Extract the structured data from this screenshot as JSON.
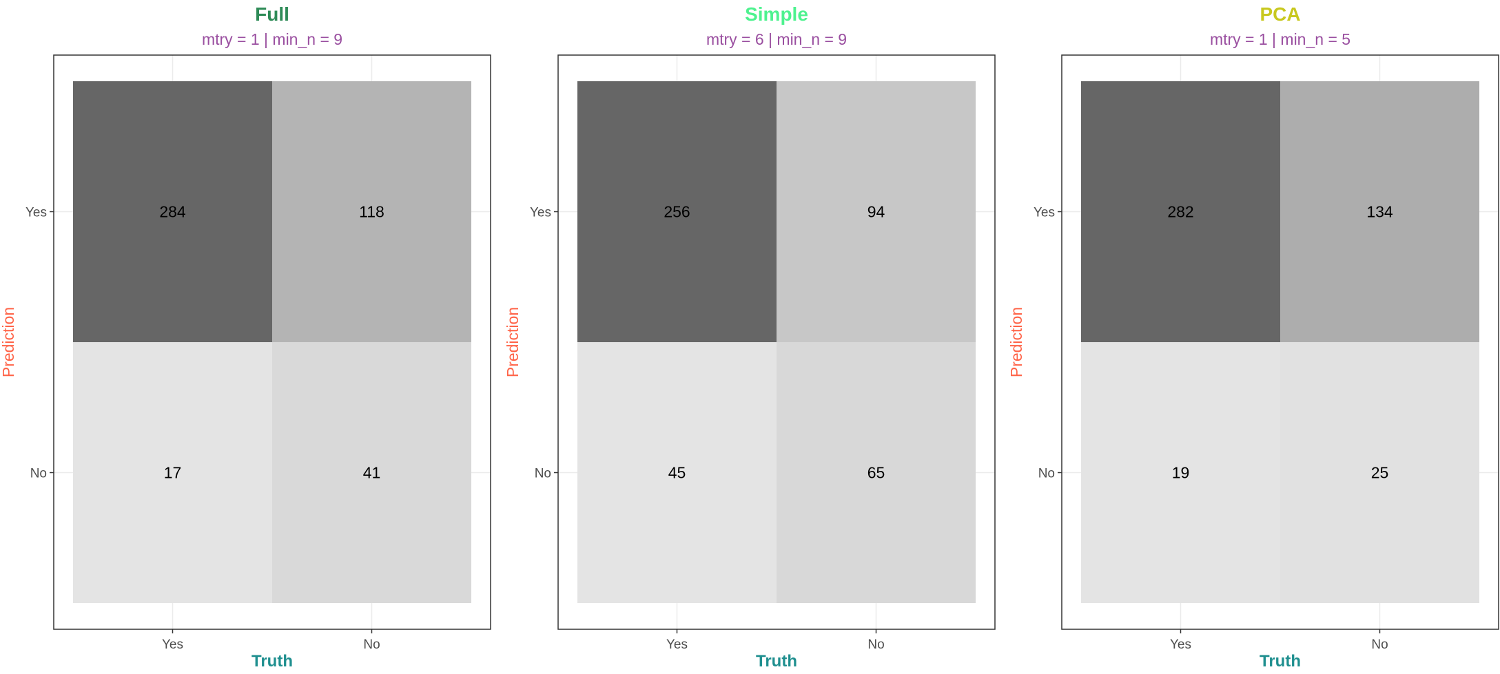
{
  "chart_data": [
    {
      "type": "heatmap",
      "title": "Full",
      "subtitle": "mtry = 1 | min_n = 9",
      "xlabel": "Truth",
      "ylabel": "Prediction",
      "x_categories": [
        "Yes",
        "No"
      ],
      "y_categories": [
        "Yes",
        "No"
      ],
      "cells": [
        {
          "truth": "Yes",
          "prediction": "Yes",
          "value": 284
        },
        {
          "truth": "No",
          "prediction": "Yes",
          "value": 118
        },
        {
          "truth": "Yes",
          "prediction": "No",
          "value": 17
        },
        {
          "truth": "No",
          "prediction": "No",
          "value": 41
        }
      ],
      "title_color": "#2e8b57",
      "grid": true,
      "legend": "none"
    },
    {
      "type": "heatmap",
      "title": "Simple",
      "subtitle": "mtry = 6 | min_n = 9",
      "xlabel": "Truth",
      "ylabel": "Prediction",
      "x_categories": [
        "Yes",
        "No"
      ],
      "y_categories": [
        "Yes",
        "No"
      ],
      "cells": [
        {
          "truth": "Yes",
          "prediction": "Yes",
          "value": 256
        },
        {
          "truth": "No",
          "prediction": "Yes",
          "value": 94
        },
        {
          "truth": "Yes",
          "prediction": "No",
          "value": 45
        },
        {
          "truth": "No",
          "prediction": "No",
          "value": 65
        }
      ],
      "title_color": "#4ef28f",
      "grid": true,
      "legend": "none"
    },
    {
      "type": "heatmap",
      "title": "PCA",
      "subtitle": "mtry = 1 | min_n = 5",
      "xlabel": "Truth",
      "ylabel": "Prediction",
      "x_categories": [
        "Yes",
        "No"
      ],
      "y_categories": [
        "Yes",
        "No"
      ],
      "cells": [
        {
          "truth": "Yes",
          "prediction": "Yes",
          "value": 282
        },
        {
          "truth": "No",
          "prediction": "Yes",
          "value": 134
        },
        {
          "truth": "Yes",
          "prediction": "No",
          "value": 19
        },
        {
          "truth": "No",
          "prediction": "No",
          "value": 25
        }
      ],
      "title_color": "#c8c81e",
      "grid": true,
      "legend": "none"
    }
  ],
  "colors": {
    "subtitle": "#9a4fa0",
    "xlabel": "#1f8f8f",
    "ylabel": "#ff6347",
    "fill_low": "#e4e4e4",
    "fill_high": "#666666",
    "grid": "#ebebeb",
    "panel_border": "#333333"
  }
}
